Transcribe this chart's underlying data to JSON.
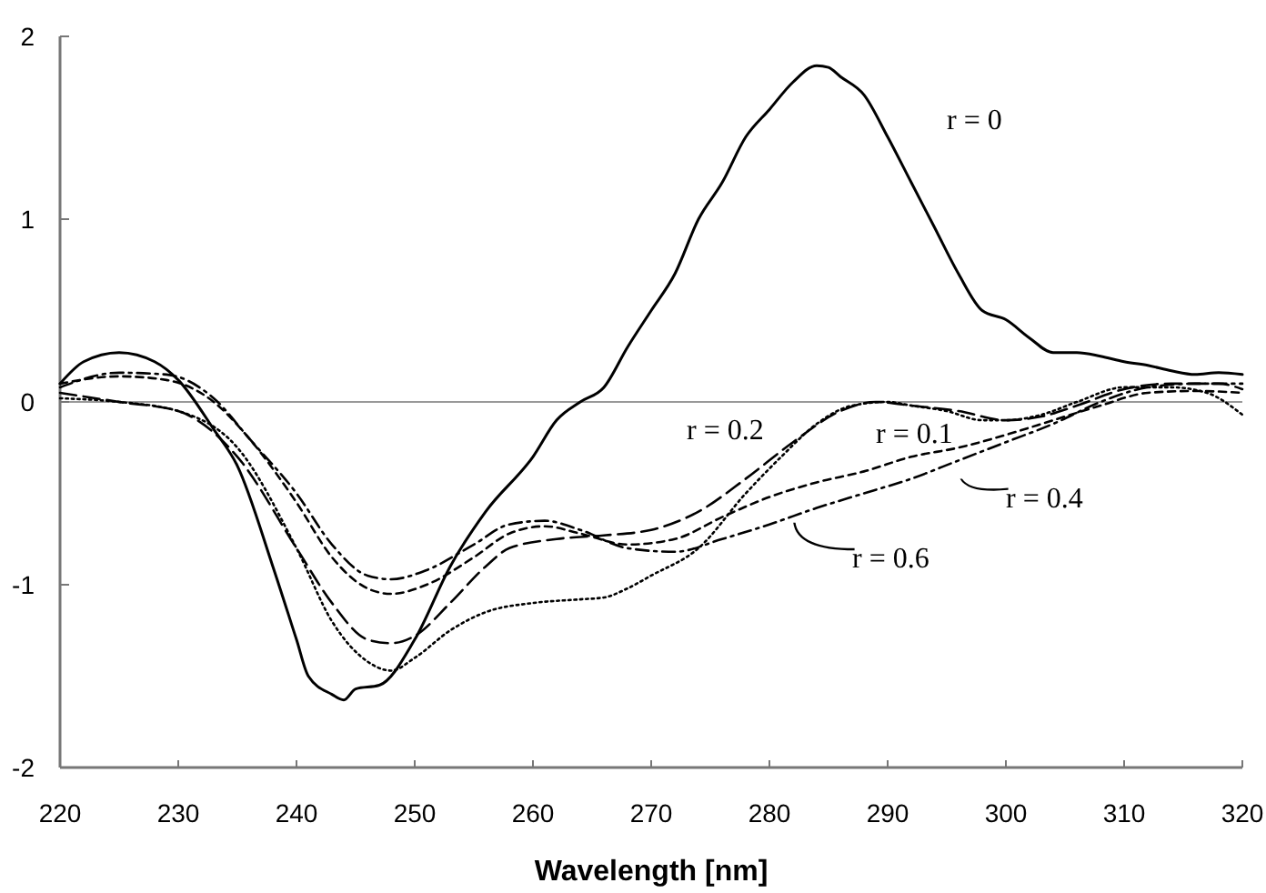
{
  "chart_data": {
    "type": "line",
    "xlabel": "Wavelength [nm]",
    "xlim": [
      220,
      320
    ],
    "xticks": [
      220,
      230,
      240,
      250,
      260,
      270,
      280,
      290,
      300,
      310,
      320
    ],
    "ylim": [
      -2,
      2
    ],
    "yticks": [
      -2,
      -1,
      0,
      1,
      2
    ],
    "grid": false,
    "marker": "none",
    "legend": "right",
    "ref_lines": [
      {
        "axis": "y",
        "value": 0,
        "color": "#999999"
      }
    ],
    "series": [
      {
        "name": "r = 0",
        "color": "#000000",
        "line_style": "solid",
        "x": [
          220,
          222,
          225,
          228,
          230,
          233,
          235,
          238,
          240,
          241,
          243,
          244,
          245,
          247,
          250,
          253,
          256,
          260,
          262,
          264,
          266,
          268,
          270,
          272,
          274,
          276,
          278,
          280,
          282,
          284,
          285,
          286,
          288,
          290,
          292,
          294,
          296,
          298,
          300,
          302,
          304,
          306,
          308,
          310,
          312,
          314,
          316,
          318,
          320
        ],
        "values": [
          0.1,
          0.22,
          0.27,
          0.22,
          0.12,
          -0.15,
          -0.35,
          -0.9,
          -1.3,
          -1.5,
          -1.6,
          -1.63,
          -1.57,
          -1.55,
          -1.3,
          -0.9,
          -0.6,
          -0.3,
          -0.1,
          0,
          0.08,
          0.3,
          0.5,
          0.7,
          1.0,
          1.2,
          1.45,
          1.6,
          1.75,
          1.84,
          1.83,
          1.78,
          1.68,
          1.45,
          1.2,
          0.95,
          0.7,
          0.5,
          0.45,
          0.35,
          0.27,
          0.27,
          0.25,
          0.22,
          0.2,
          0.17,
          0.15,
          0.16,
          0.15
        ]
      },
      {
        "name": "r = 0.1",
        "color": "#000000",
        "line_style": "dotted",
        "x": [
          220,
          225,
          230,
          235,
          240,
          243,
          246,
          248,
          250,
          253,
          256,
          260,
          264,
          266,
          268,
          270,
          274,
          278,
          281,
          284,
          287,
          290,
          292,
          295,
          298,
          300,
          303,
          306,
          310,
          314,
          317,
          320
        ],
        "values": [
          0.02,
          0,
          -0.05,
          -0.25,
          -0.8,
          -1.2,
          -1.42,
          -1.47,
          -1.4,
          -1.25,
          -1.15,
          -1.1,
          -1.08,
          -1.07,
          -1.02,
          -0.95,
          -0.8,
          -0.5,
          -0.3,
          -0.12,
          -0.02,
          0,
          -0.02,
          -0.05,
          -0.1,
          -0.1,
          -0.07,
          0,
          0.08,
          0.08,
          0.05,
          -0.07
        ]
      },
      {
        "name": "r = 0.2",
        "color": "#000000",
        "line_style": "longdash",
        "x": [
          220,
          225,
          230,
          235,
          240,
          243,
          246,
          248,
          250,
          253,
          256,
          258,
          262,
          266,
          270,
          274,
          278,
          282,
          286,
          289,
          292,
          296,
          300,
          303,
          306,
          310,
          314,
          318,
          320
        ],
        "values": [
          0.05,
          0,
          -0.05,
          -0.3,
          -0.8,
          -1.1,
          -1.3,
          -1.32,
          -1.28,
          -1.1,
          -0.9,
          -0.8,
          -0.75,
          -0.73,
          -0.7,
          -0.6,
          -0.42,
          -0.22,
          -0.05,
          0,
          -0.02,
          -0.05,
          -0.1,
          -0.08,
          -0.02,
          0.07,
          0.1,
          0.1,
          0.07
        ]
      },
      {
        "name": "r = 0.4",
        "color": "#000000",
        "line_style": "dashed",
        "x": [
          220,
          225,
          229,
          233,
          236,
          240,
          243,
          246,
          248,
          251,
          255,
          258,
          261,
          264,
          268,
          272,
          276,
          280,
          284,
          288,
          292,
          296,
          300,
          304,
          308,
          312,
          316,
          320
        ],
        "values": [
          0.1,
          0.14,
          0.12,
          0,
          -0.2,
          -0.55,
          -0.85,
          -1.02,
          -1.05,
          -1.0,
          -0.85,
          -0.72,
          -0.68,
          -0.72,
          -0.78,
          -0.75,
          -0.63,
          -0.52,
          -0.44,
          -0.38,
          -0.3,
          -0.25,
          -0.18,
          -0.1,
          -0.02,
          0.05,
          0.06,
          0.05
        ]
      },
      {
        "name": "r = 0.6",
        "color": "#000000",
        "line_style": "dashdot",
        "x": [
          220,
          225,
          229,
          233,
          236,
          240,
          243,
          246,
          248,
          251,
          255,
          258,
          261,
          264,
          268,
          272,
          276,
          280,
          284,
          288,
          292,
          296,
          300,
          304,
          308,
          312,
          316,
          320
        ],
        "values": [
          0.08,
          0.16,
          0.15,
          0.02,
          -0.2,
          -0.5,
          -0.78,
          -0.95,
          -0.97,
          -0.92,
          -0.78,
          -0.67,
          -0.65,
          -0.7,
          -0.8,
          -0.82,
          -0.75,
          -0.67,
          -0.58,
          -0.5,
          -0.42,
          -0.32,
          -0.22,
          -0.12,
          0,
          0.08,
          0.1,
          0.1
        ]
      }
    ]
  }
}
